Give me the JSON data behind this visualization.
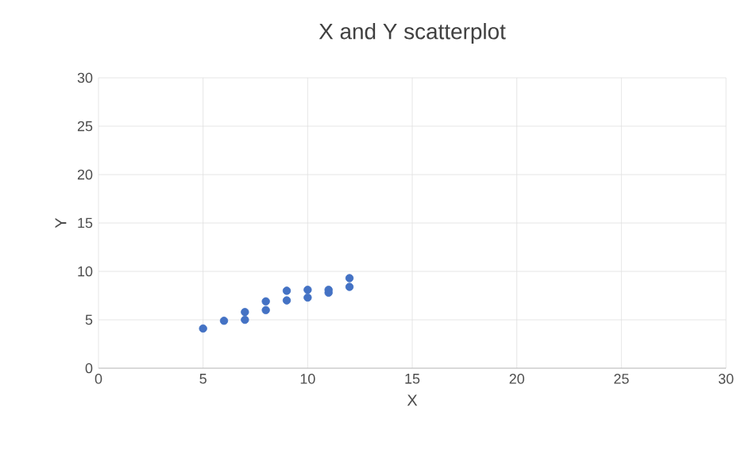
{
  "chart_data": {
    "type": "scatter",
    "title": "X and Y scatterplot",
    "xlabel": "X",
    "ylabel": "Y",
    "x": [
      5,
      6,
      7,
      7,
      8,
      8,
      9,
      9,
      10,
      10,
      11,
      11,
      12,
      12
    ],
    "series": [
      {
        "color": "#4472c4",
        "values": [
          4.1,
          4.9,
          5.0,
          5.8,
          6.0,
          6.9,
          7.0,
          8.0,
          7.3,
          8.1,
          7.8,
          8.1,
          8.4,
          9.3
        ]
      }
    ],
    "xlim": [
      0,
      30
    ],
    "ylim": [
      0,
      30
    ],
    "xticks": [
      0,
      5,
      10,
      15,
      20,
      25,
      30
    ],
    "yticks": [
      0,
      5,
      10,
      15,
      20,
      25,
      30
    ],
    "grid": true
  }
}
